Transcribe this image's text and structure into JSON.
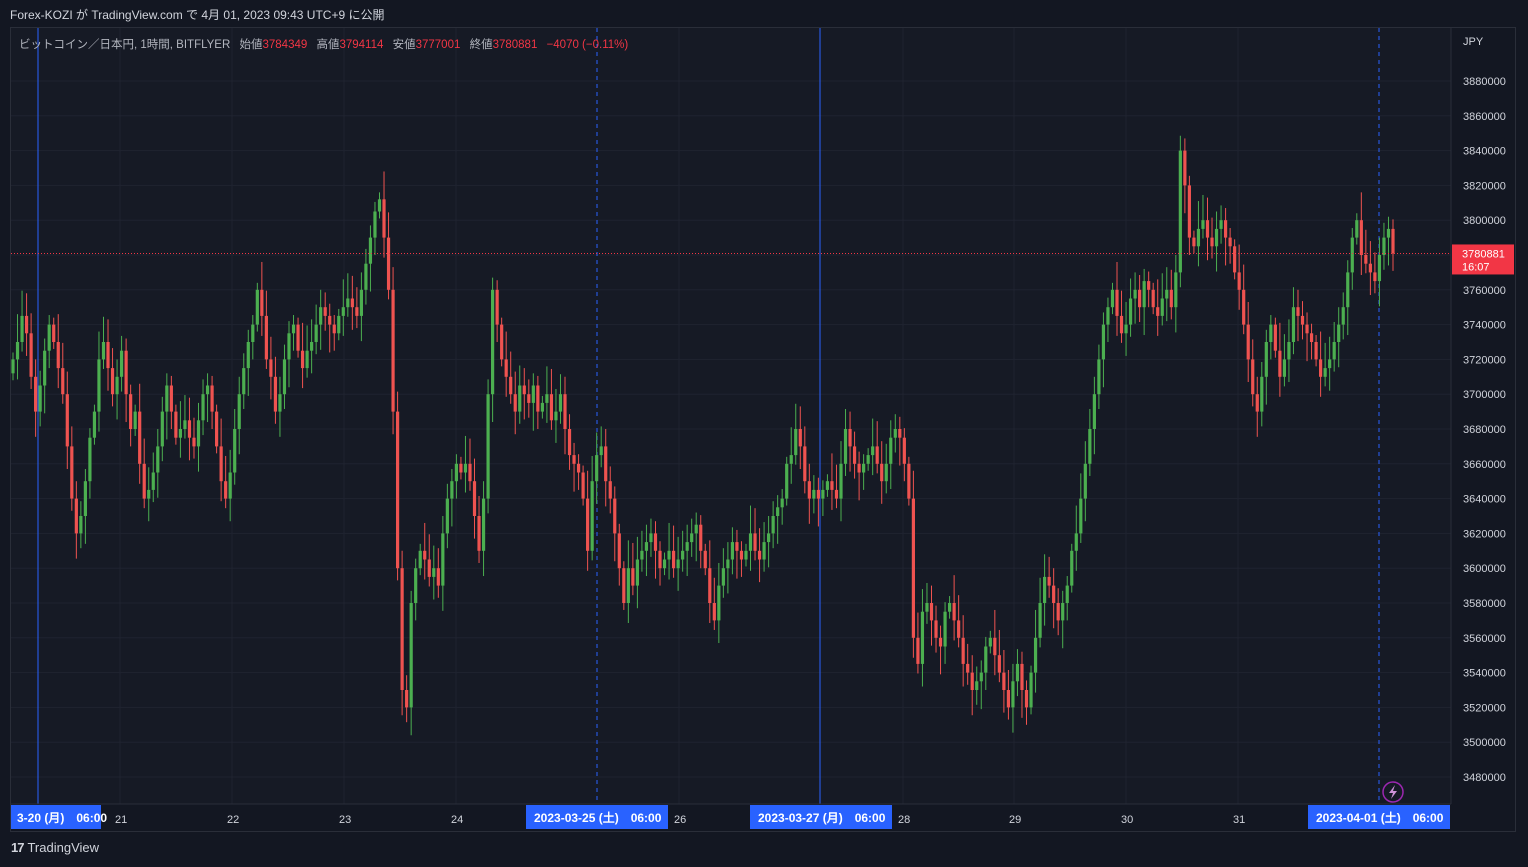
{
  "header": {
    "publish_line": "Forex-KOZI が TradingView.com で 4月 01, 2023 09:43 UTC+9 に公開"
  },
  "legend": {
    "symbol": "ビットコイン／日本円, 1時間, BITFLYER",
    "open_label": "始値",
    "open": "3784349",
    "high_label": "高値",
    "high": "3794114",
    "low_label": "安値",
    "low": "3777001",
    "close_label": "終値",
    "close": "3780881",
    "change": "−4070 (−0.11%)"
  },
  "price_axis": {
    "currency": "JPY",
    "ticks": [
      "3880000",
      "3860000",
      "3840000",
      "3820000",
      "3800000",
      "3780000",
      "3760000",
      "3740000",
      "3720000",
      "3700000",
      "3680000",
      "3660000",
      "3640000",
      "3620000",
      "3600000",
      "3580000",
      "3560000",
      "3540000",
      "3520000",
      "3500000",
      "3480000"
    ],
    "last_price": "3780881",
    "countdown": "16:07"
  },
  "time_axis": {
    "labels": [
      "21",
      "22",
      "23",
      "24",
      "26",
      "28",
      "29",
      "30",
      "31"
    ],
    "highlighted": [
      "3-20 (月)　06:00",
      "2023-03-25 (土)　06:00",
      "2023-03-27 (月)　06:00",
      "2023-04-01 (土)　06:00"
    ]
  },
  "footer": {
    "brand": "TradingView",
    "logo": "17"
  },
  "colors": {
    "up": "#26a69a",
    "up_candle": "#4caf50",
    "down": "#ef5350",
    "accent": "#2962ff",
    "background": "#131722"
  },
  "chart_data": {
    "type": "candlestick",
    "symbol": "ビットコイン／日本円",
    "timeframe": "1時間",
    "exchange": "BITFLYER",
    "currency": "JPY",
    "x_range": [
      "2023-03-19 19:00",
      "2023-04-01 09:00"
    ],
    "ylim": [
      3470000,
      3890000
    ],
    "last_close": 3780881,
    "series_close": [
      3720000,
      3730000,
      3745000,
      3735000,
      3710000,
      3690000,
      3705000,
      3725000,
      3740000,
      3730000,
      3715000,
      3700000,
      3670000,
      3640000,
      3620000,
      3630000,
      3650000,
      3675000,
      3690000,
      3720000,
      3730000,
      3715000,
      3700000,
      3710000,
      3725000,
      3700000,
      3680000,
      3690000,
      3660000,
      3640000,
      3645000,
      3655000,
      3670000,
      3690000,
      3705000,
      3690000,
      3675000,
      3680000,
      3685000,
      3675000,
      3670000,
      3685000,
      3700000,
      3705000,
      3690000,
      3670000,
      3650000,
      3640000,
      3655000,
      3680000,
      3700000,
      3715000,
      3730000,
      3740000,
      3760000,
      3745000,
      3720000,
      3710000,
      3690000,
      3700000,
      3720000,
      3735000,
      3740000,
      3725000,
      3715000,
      3725000,
      3730000,
      3740000,
      3750000,
      3745000,
      3740000,
      3735000,
      3745000,
      3750000,
      3755000,
      3750000,
      3745000,
      3760000,
      3775000,
      3790000,
      3805000,
      3812000,
      3790000,
      3760000,
      3690000,
      3600000,
      3530000,
      3520000,
      3580000,
      3600000,
      3610000,
      3605000,
      3595000,
      3600000,
      3590000,
      3620000,
      3640000,
      3650000,
      3660000,
      3655000,
      3660000,
      3650000,
      3630000,
      3610000,
      3640000,
      3700000,
      3760000,
      3740000,
      3720000,
      3710000,
      3700000,
      3690000,
      3705000,
      3700000,
      3695000,
      3705000,
      3690000,
      3695000,
      3700000,
      3685000,
      3690000,
      3700000,
      3680000,
      3665000,
      3660000,
      3655000,
      3640000,
      3610000,
      3650000,
      3665000,
      3670000,
      3650000,
      3640000,
      3620000,
      3600000,
      3580000,
      3600000,
      3590000,
      3605000,
      3610000,
      3615000,
      3620000,
      3610000,
      3600000,
      3605000,
      3610000,
      3600000,
      3605000,
      3610000,
      3615000,
      3620000,
      3625000,
      3610000,
      3600000,
      3580000,
      3570000,
      3590000,
      3600000,
      3605000,
      3615000,
      3610000,
      3605000,
      3610000,
      3620000,
      3610000,
      3605000,
      3615000,
      3620000,
      3630000,
      3635000,
      3640000,
      3660000,
      3665000,
      3680000,
      3670000,
      3650000,
      3640000,
      3645000,
      3640000,
      3645000,
      3650000,
      3645000,
      3640000,
      3660000,
      3680000,
      3670000,
      3660000,
      3655000,
      3660000,
      3665000,
      3670000,
      3660000,
      3650000,
      3660000,
      3675000,
      3680000,
      3675000,
      3660000,
      3640000,
      3560000,
      3545000,
      3575000,
      3580000,
      3570000,
      3560000,
      3555000,
      3575000,
      3580000,
      3570000,
      3560000,
      3545000,
      3540000,
      3530000,
      3535000,
      3540000,
      3555000,
      3560000,
      3550000,
      3540000,
      3530000,
      3520000,
      3535000,
      3545000,
      3530000,
      3520000,
      3540000,
      3560000,
      3580000,
      3595000,
      3590000,
      3580000,
      3570000,
      3580000,
      3590000,
      3610000,
      3620000,
      3640000,
      3660000,
      3680000,
      3700000,
      3720000,
      3740000,
      3750000,
      3760000,
      3745000,
      3735000,
      3740000,
      3755000,
      3760000,
      3750000,
      3765000,
      3760000,
      3750000,
      3745000,
      3755000,
      3760000,
      3750000,
      3770000,
      3840000,
      3820000,
      3790000,
      3785000,
      3795000,
      3800000,
      3790000,
      3785000,
      3795000,
      3800000,
      3790000,
      3785000,
      3770000,
      3760000,
      3740000,
      3720000,
      3700000,
      3690000,
      3710000,
      3730000,
      3740000,
      3725000,
      3710000,
      3720000,
      3730000,
      3750000,
      3745000,
      3740000,
      3735000,
      3730000,
      3720000,
      3710000,
      3715000,
      3720000,
      3730000,
      3740000,
      3750000,
      3770000,
      3790000,
      3800000,
      3780000,
      3775000,
      3770000,
      3765000,
      3780000,
      3790000,
      3795000,
      3780881
    ]
  }
}
